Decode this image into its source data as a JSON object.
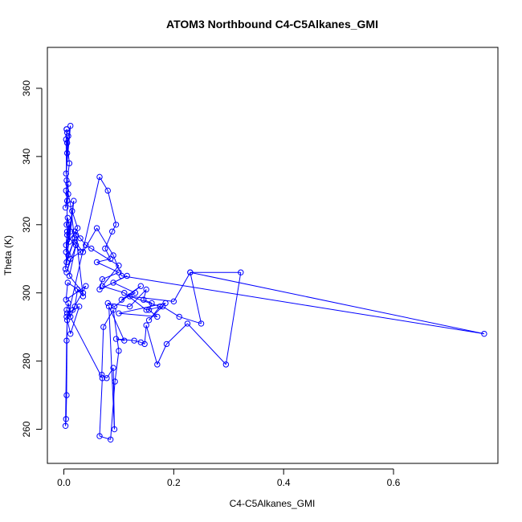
{
  "chart_data": {
    "type": "line",
    "markers": "open-circle",
    "title": "ATOM3 Northbound C4-C5Alkanes_GMI",
    "xlabel": "C4-C5Alkanes_GMI",
    "ylabel": "Theta (K)",
    "xlim": [
      -0.03,
      0.79
    ],
    "ylim": [
      250.0,
      372.0
    ],
    "xticks": [
      0.0,
      0.2,
      0.4,
      0.6
    ],
    "xtick_labels": [
      "0.0",
      "0.2",
      "0.4",
      "0.6"
    ],
    "yticks": [
      260,
      280,
      300,
      320,
      340,
      360
    ],
    "ytick_labels": [
      "260",
      "280",
      "300",
      "320",
      "340",
      "360"
    ],
    "grid": false,
    "color": "#0000ff",
    "series": [
      {
        "x": [
          0.005,
          0.006,
          0.008,
          0.004,
          0.012,
          0.006,
          0.01,
          0.004,
          0.006,
          0.003,
          0.008,
          0.005,
          0.012,
          0.007,
          0.004,
          0.018,
          0.01,
          0.006,
          0.004,
          0.025,
          0.015,
          0.005,
          0.02,
          0.008,
          0.003,
          0.009,
          0.006,
          0.03,
          0.012,
          0.005,
          0.022,
          0.01,
          0.035,
          0.007,
          0.004,
          0.04,
          0.016,
          0.005,
          0.012,
          0.028,
          0.006,
          0.005,
          0.004,
          0.003,
          0.005,
          0.006,
          0.065,
          0.08,
          0.095,
          0.088,
          0.075,
          0.085,
          0.06,
          0.1,
          0.07,
          0.065,
          0.115,
          0.09,
          0.13,
          0.105,
          0.14,
          0.092,
          0.08,
          0.12,
          0.15,
          0.145,
          0.16,
          0.155,
          0.17,
          0.1,
          0.185,
          0.155,
          0.175,
          0.12,
          0.2,
          0.23,
          0.25,
          0.21,
          0.18,
          0.15,
          0.11,
          0.07,
          0.1,
          0.05,
          0.04,
          0.03,
          0.02,
          0.022,
          0.035,
          0.025,
          0.02,
          0.012,
          0.008,
          0.005,
          0.07,
          0.065,
          0.085,
          0.093,
          0.1,
          0.09,
          0.072,
          0.069,
          0.078,
          0.09,
          0.092,
          0.082,
          0.11,
          0.095,
          0.128,
          0.14,
          0.147,
          0.15,
          0.17,
          0.187,
          0.225,
          0.295,
          0.322,
          0.23,
          0.765,
          0.105,
          0.09,
          0.06,
          0.035,
          0.02,
          0.012,
          0.008,
          0.005,
          0.004,
          0.006,
          0.005
        ],
        "y": [
          348.0,
          341.0,
          346.0,
          335.0,
          349.0,
          344.0,
          338.0,
          330.0,
          327.0,
          325.0,
          332.0,
          320.0,
          318.0,
          322.0,
          312.0,
          327.0,
          315.0,
          318.0,
          314.0,
          319.0,
          324.0,
          309.0,
          316.0,
          311.0,
          307.0,
          320.0,
          317.0,
          312.0,
          310.0,
          306.0,
          314.0,
          305.0,
          300.0,
          303.0,
          298.0,
          302.0,
          295.0,
          293.0,
          288.0,
          296.0,
          294.0,
          270.0,
          263.0,
          261.0,
          286.0,
          292.0,
          334.0,
          330.0,
          320.0,
          318.0,
          313.0,
          310.0,
          309.0,
          306.0,
          304.0,
          301.0,
          305.0,
          303.0,
          300.0,
          298.0,
          302.0,
          296.0,
          297.0,
          296.0,
          301.0,
          298.0,
          297.0,
          295.0,
          293.0,
          294.0,
          297.0,
          292.0,
          296.0,
          299.0,
          297.5,
          306.0,
          291.0,
          293.0,
          296.0,
          295.0,
          300.0,
          302.0,
          308.0,
          313.0,
          314.0,
          316.0,
          318.0,
          317.0,
          299.0,
          301.0,
          296.0,
          293.0,
          297.0,
          295.0,
          275.0,
          258.0,
          257.0,
          274.0,
          283.0,
          295.0,
          290.0,
          276.0,
          275.0,
          278.0,
          260.0,
          296.0,
          286.0,
          286.5,
          286.0,
          285.5,
          285.0,
          290.5,
          279.0,
          285.0,
          291.0,
          279.0,
          306.0,
          306.0,
          288.0,
          305.0,
          311.0,
          319.0,
          312.0,
          315.0,
          326.0,
          329.0,
          333.0,
          345.0,
          347.0,
          348.0
        ]
      }
    ]
  }
}
